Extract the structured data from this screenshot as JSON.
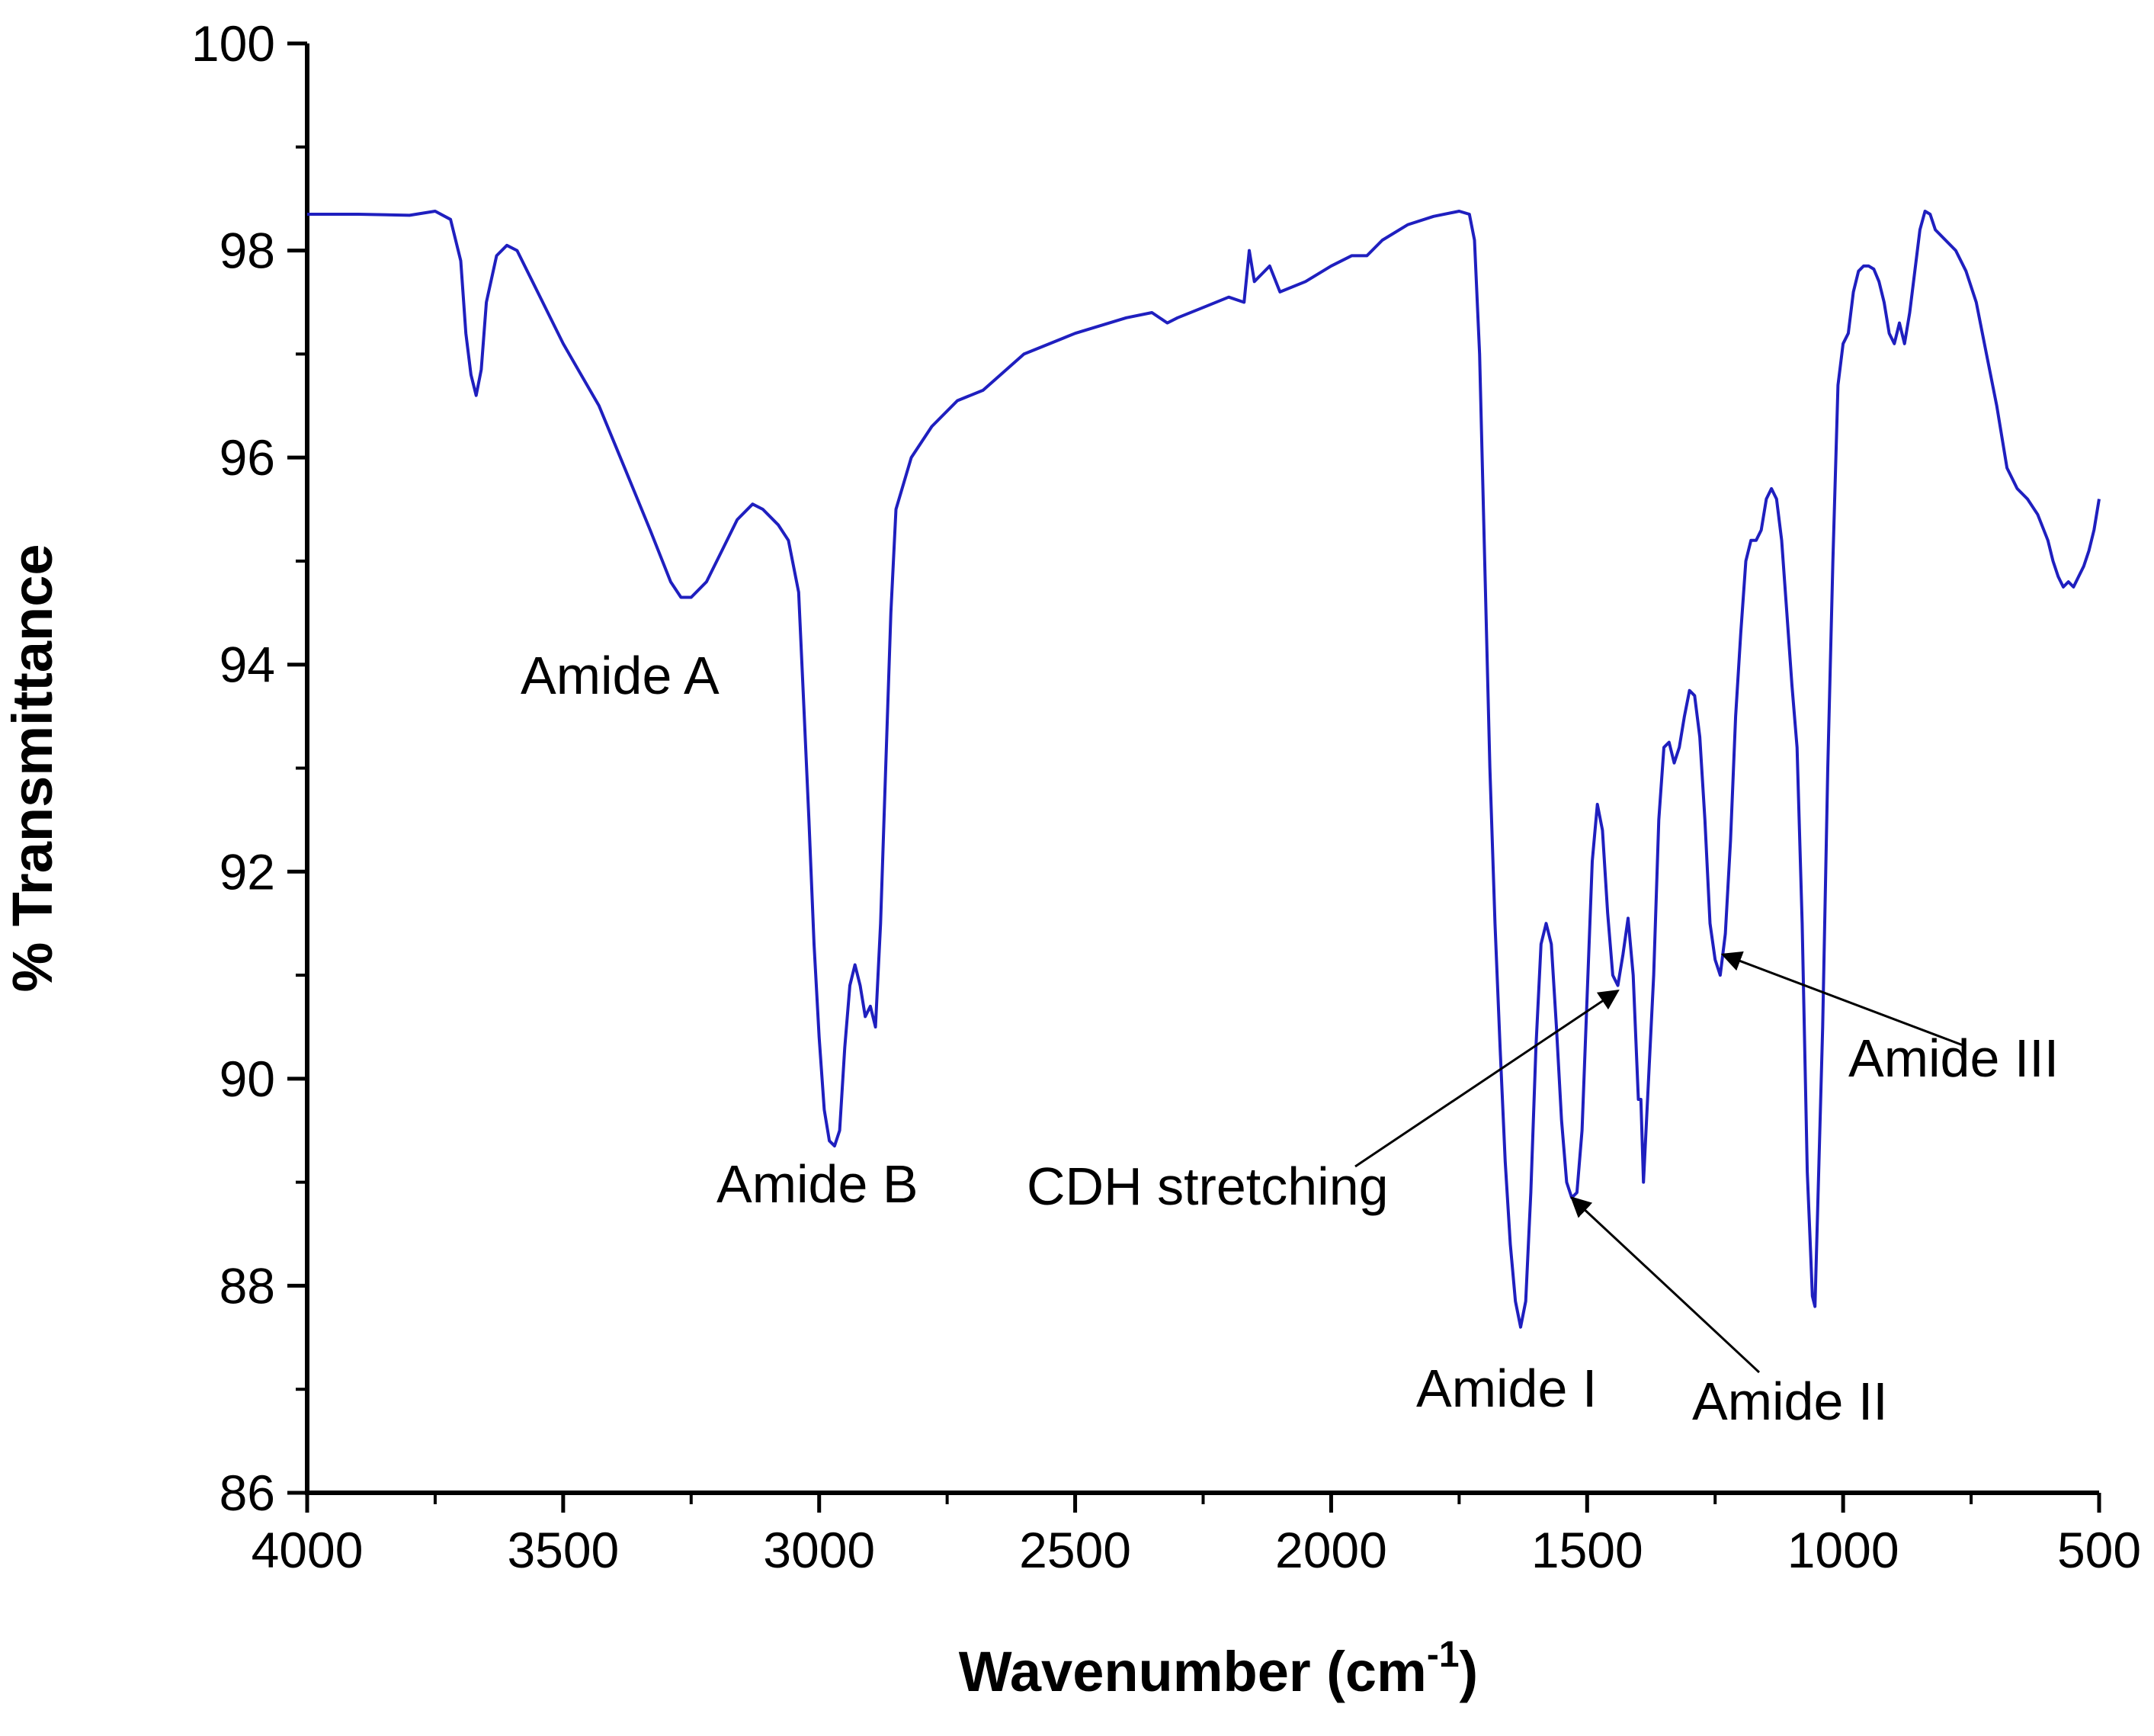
{
  "chart_data": {
    "type": "line",
    "xlabel": "Wavenumber (cm",
    "xlabel_superscript": "-1",
    "xlabel_suffix": ")",
    "ylabel": "% Transmittance",
    "xlim": [
      4000,
      500
    ],
    "ylim": [
      86,
      100
    ],
    "x_reversed": true,
    "x_ticks": [
      "4000",
      "3500",
      "3000",
      "2500",
      "2000",
      "1500",
      "1000",
      "500"
    ],
    "y_ticks": [
      "86",
      "88",
      "90",
      "92",
      "94",
      "96",
      "98",
      "100"
    ],
    "grid": false,
    "line_color": "#1f1fbf",
    "series": [
      {
        "points": [
          [
            4000,
            98.35
          ],
          [
            3900,
            98.35
          ],
          [
            3800,
            98.34
          ],
          [
            3750,
            98.38
          ],
          [
            3720,
            98.3
          ],
          [
            3700,
            97.9
          ],
          [
            3690,
            97.2
          ],
          [
            3680,
            96.8
          ],
          [
            3670,
            96.6
          ],
          [
            3660,
            96.85
          ],
          [
            3650,
            97.5
          ],
          [
            3630,
            97.95
          ],
          [
            3610,
            98.05
          ],
          [
            3590,
            98.0
          ],
          [
            3560,
            97.7
          ],
          [
            3500,
            97.1
          ],
          [
            3430,
            96.5
          ],
          [
            3380,
            95.9
          ],
          [
            3330,
            95.3
          ],
          [
            3290,
            94.8
          ],
          [
            3270,
            94.65
          ],
          [
            3250,
            94.65
          ],
          [
            3220,
            94.8
          ],
          [
            3190,
            95.1
          ],
          [
            3160,
            95.4
          ],
          [
            3130,
            95.55
          ],
          [
            3110,
            95.5
          ],
          [
            3080,
            95.35
          ],
          [
            3060,
            95.2
          ],
          [
            3040,
            94.7
          ],
          [
            3030,
            93.6
          ],
          [
            3020,
            92.5
          ],
          [
            3010,
            91.3
          ],
          [
            3000,
            90.4
          ],
          [
            2990,
            89.7
          ],
          [
            2980,
            89.4
          ],
          [
            2970,
            89.35
          ],
          [
            2960,
            89.5
          ],
          [
            2950,
            90.3
          ],
          [
            2940,
            90.9
          ],
          [
            2930,
            91.1
          ],
          [
            2920,
            90.9
          ],
          [
            2910,
            90.6
          ],
          [
            2900,
            90.7
          ],
          [
            2890,
            90.5
          ],
          [
            2880,
            91.5
          ],
          [
            2870,
            93.0
          ],
          [
            2860,
            94.5
          ],
          [
            2850,
            95.5
          ],
          [
            2820,
            96.0
          ],
          [
            2780,
            96.3
          ],
          [
            2730,
            96.55
          ],
          [
            2680,
            96.65
          ],
          [
            2600,
            97.0
          ],
          [
            2500,
            97.2
          ],
          [
            2400,
            97.35
          ],
          [
            2350,
            97.4
          ],
          [
            2320,
            97.3
          ],
          [
            2300,
            97.35
          ],
          [
            2250,
            97.45
          ],
          [
            2200,
            97.55
          ],
          [
            2170,
            97.5
          ],
          [
            2160,
            98.0
          ],
          [
            2150,
            97.7
          ],
          [
            2120,
            97.85
          ],
          [
            2100,
            97.6
          ],
          [
            2050,
            97.7
          ],
          [
            2000,
            97.85
          ],
          [
            1960,
            97.95
          ],
          [
            1930,
            97.95
          ],
          [
            1900,
            98.1
          ],
          [
            1850,
            98.25
          ],
          [
            1800,
            98.33
          ],
          [
            1750,
            98.38
          ],
          [
            1730,
            98.35
          ],
          [
            1720,
            98.1
          ],
          [
            1710,
            97.0
          ],
          [
            1700,
            95.0
          ],
          [
            1690,
            93.0
          ],
          [
            1680,
            91.5
          ],
          [
            1670,
            90.3
          ],
          [
            1660,
            89.2
          ],
          [
            1650,
            88.4
          ],
          [
            1640,
            87.85
          ],
          [
            1630,
            87.6
          ],
          [
            1620,
            87.85
          ],
          [
            1610,
            88.9
          ],
          [
            1600,
            90.3
          ],
          [
            1590,
            91.3
          ],
          [
            1580,
            91.5
          ],
          [
            1570,
            91.3
          ],
          [
            1560,
            90.5
          ],
          [
            1550,
            89.6
          ],
          [
            1540,
            89.0
          ],
          [
            1530,
            88.85
          ],
          [
            1520,
            88.9
          ],
          [
            1510,
            89.5
          ],
          [
            1500,
            90.8
          ],
          [
            1490,
            92.1
          ],
          [
            1480,
            92.65
          ],
          [
            1470,
            92.4
          ],
          [
            1460,
            91.6
          ],
          [
            1450,
            91.0
          ],
          [
            1440,
            90.9
          ],
          [
            1430,
            91.2
          ],
          [
            1420,
            91.55
          ],
          [
            1410,
            91.0
          ],
          [
            1400,
            89.8
          ],
          [
            1395,
            89.8
          ],
          [
            1390,
            89.0
          ],
          [
            1380,
            90.0
          ],
          [
            1370,
            91.0
          ],
          [
            1360,
            92.5
          ],
          [
            1350,
            93.2
          ],
          [
            1340,
            93.25
          ],
          [
            1330,
            93.05
          ],
          [
            1320,
            93.2
          ],
          [
            1310,
            93.5
          ],
          [
            1300,
            93.75
          ],
          [
            1290,
            93.7
          ],
          [
            1280,
            93.3
          ],
          [
            1270,
            92.5
          ],
          [
            1260,
            91.5
          ],
          [
            1250,
            91.15
          ],
          [
            1240,
            91.0
          ],
          [
            1230,
            91.4
          ],
          [
            1220,
            92.3
          ],
          [
            1210,
            93.5
          ],
          [
            1200,
            94.3
          ],
          [
            1190,
            95.0
          ],
          [
            1180,
            95.2
          ],
          [
            1170,
            95.2
          ],
          [
            1160,
            95.3
          ],
          [
            1150,
            95.6
          ],
          [
            1140,
            95.7
          ],
          [
            1130,
            95.6
          ],
          [
            1120,
            95.2
          ],
          [
            1110,
            94.5
          ],
          [
            1100,
            93.8
          ],
          [
            1090,
            93.2
          ],
          [
            1080,
            91.5
          ],
          [
            1070,
            89.1
          ],
          [
            1065,
            88.5
          ],
          [
            1060,
            87.9
          ],
          [
            1055,
            87.8
          ],
          [
            1050,
            88.7
          ],
          [
            1040,
            90.5
          ],
          [
            1030,
            93.0
          ],
          [
            1020,
            95.0
          ],
          [
            1010,
            96.7
          ],
          [
            1000,
            97.1
          ],
          [
            990,
            97.2
          ],
          [
            980,
            97.6
          ],
          [
            970,
            97.8
          ],
          [
            960,
            97.85
          ],
          [
            950,
            97.85
          ],
          [
            940,
            97.82
          ],
          [
            930,
            97.7
          ],
          [
            920,
            97.5
          ],
          [
            910,
            97.2
          ],
          [
            900,
            97.1
          ],
          [
            890,
            97.3
          ],
          [
            880,
            97.1
          ],
          [
            870,
            97.4
          ],
          [
            860,
            97.8
          ],
          [
            850,
            98.2
          ],
          [
            840,
            98.38
          ],
          [
            830,
            98.35
          ],
          [
            820,
            98.2
          ],
          [
            800,
            98.1
          ],
          [
            780,
            98.0
          ],
          [
            760,
            97.8
          ],
          [
            740,
            97.5
          ],
          [
            720,
            97.0
          ],
          [
            700,
            96.5
          ],
          [
            690,
            96.2
          ],
          [
            680,
            95.9
          ],
          [
            670,
            95.8
          ],
          [
            660,
            95.7
          ],
          [
            640,
            95.6
          ],
          [
            620,
            95.45
          ],
          [
            600,
            95.2
          ],
          [
            590,
            95.0
          ],
          [
            580,
            94.85
          ],
          [
            570,
            94.75
          ],
          [
            560,
            94.8
          ],
          [
            550,
            94.75
          ],
          [
            540,
            94.85
          ],
          [
            530,
            94.95
          ],
          [
            520,
            95.1
          ],
          [
            510,
            95.3
          ],
          [
            500,
            95.6
          ]
        ]
      }
    ],
    "annotations": [
      {
        "text": "Amide A"
      },
      {
        "text": "Amide B"
      },
      {
        "text": "CDH stretching",
        "arrow_to": [
          1440,
          90.85
        ]
      },
      {
        "text": "Amide I"
      },
      {
        "text": "Amide II",
        "arrow_to": [
          1530,
          88.85
        ]
      },
      {
        "text": "Amide III",
        "arrow_to": [
          1235,
          91.2
        ]
      }
    ]
  }
}
